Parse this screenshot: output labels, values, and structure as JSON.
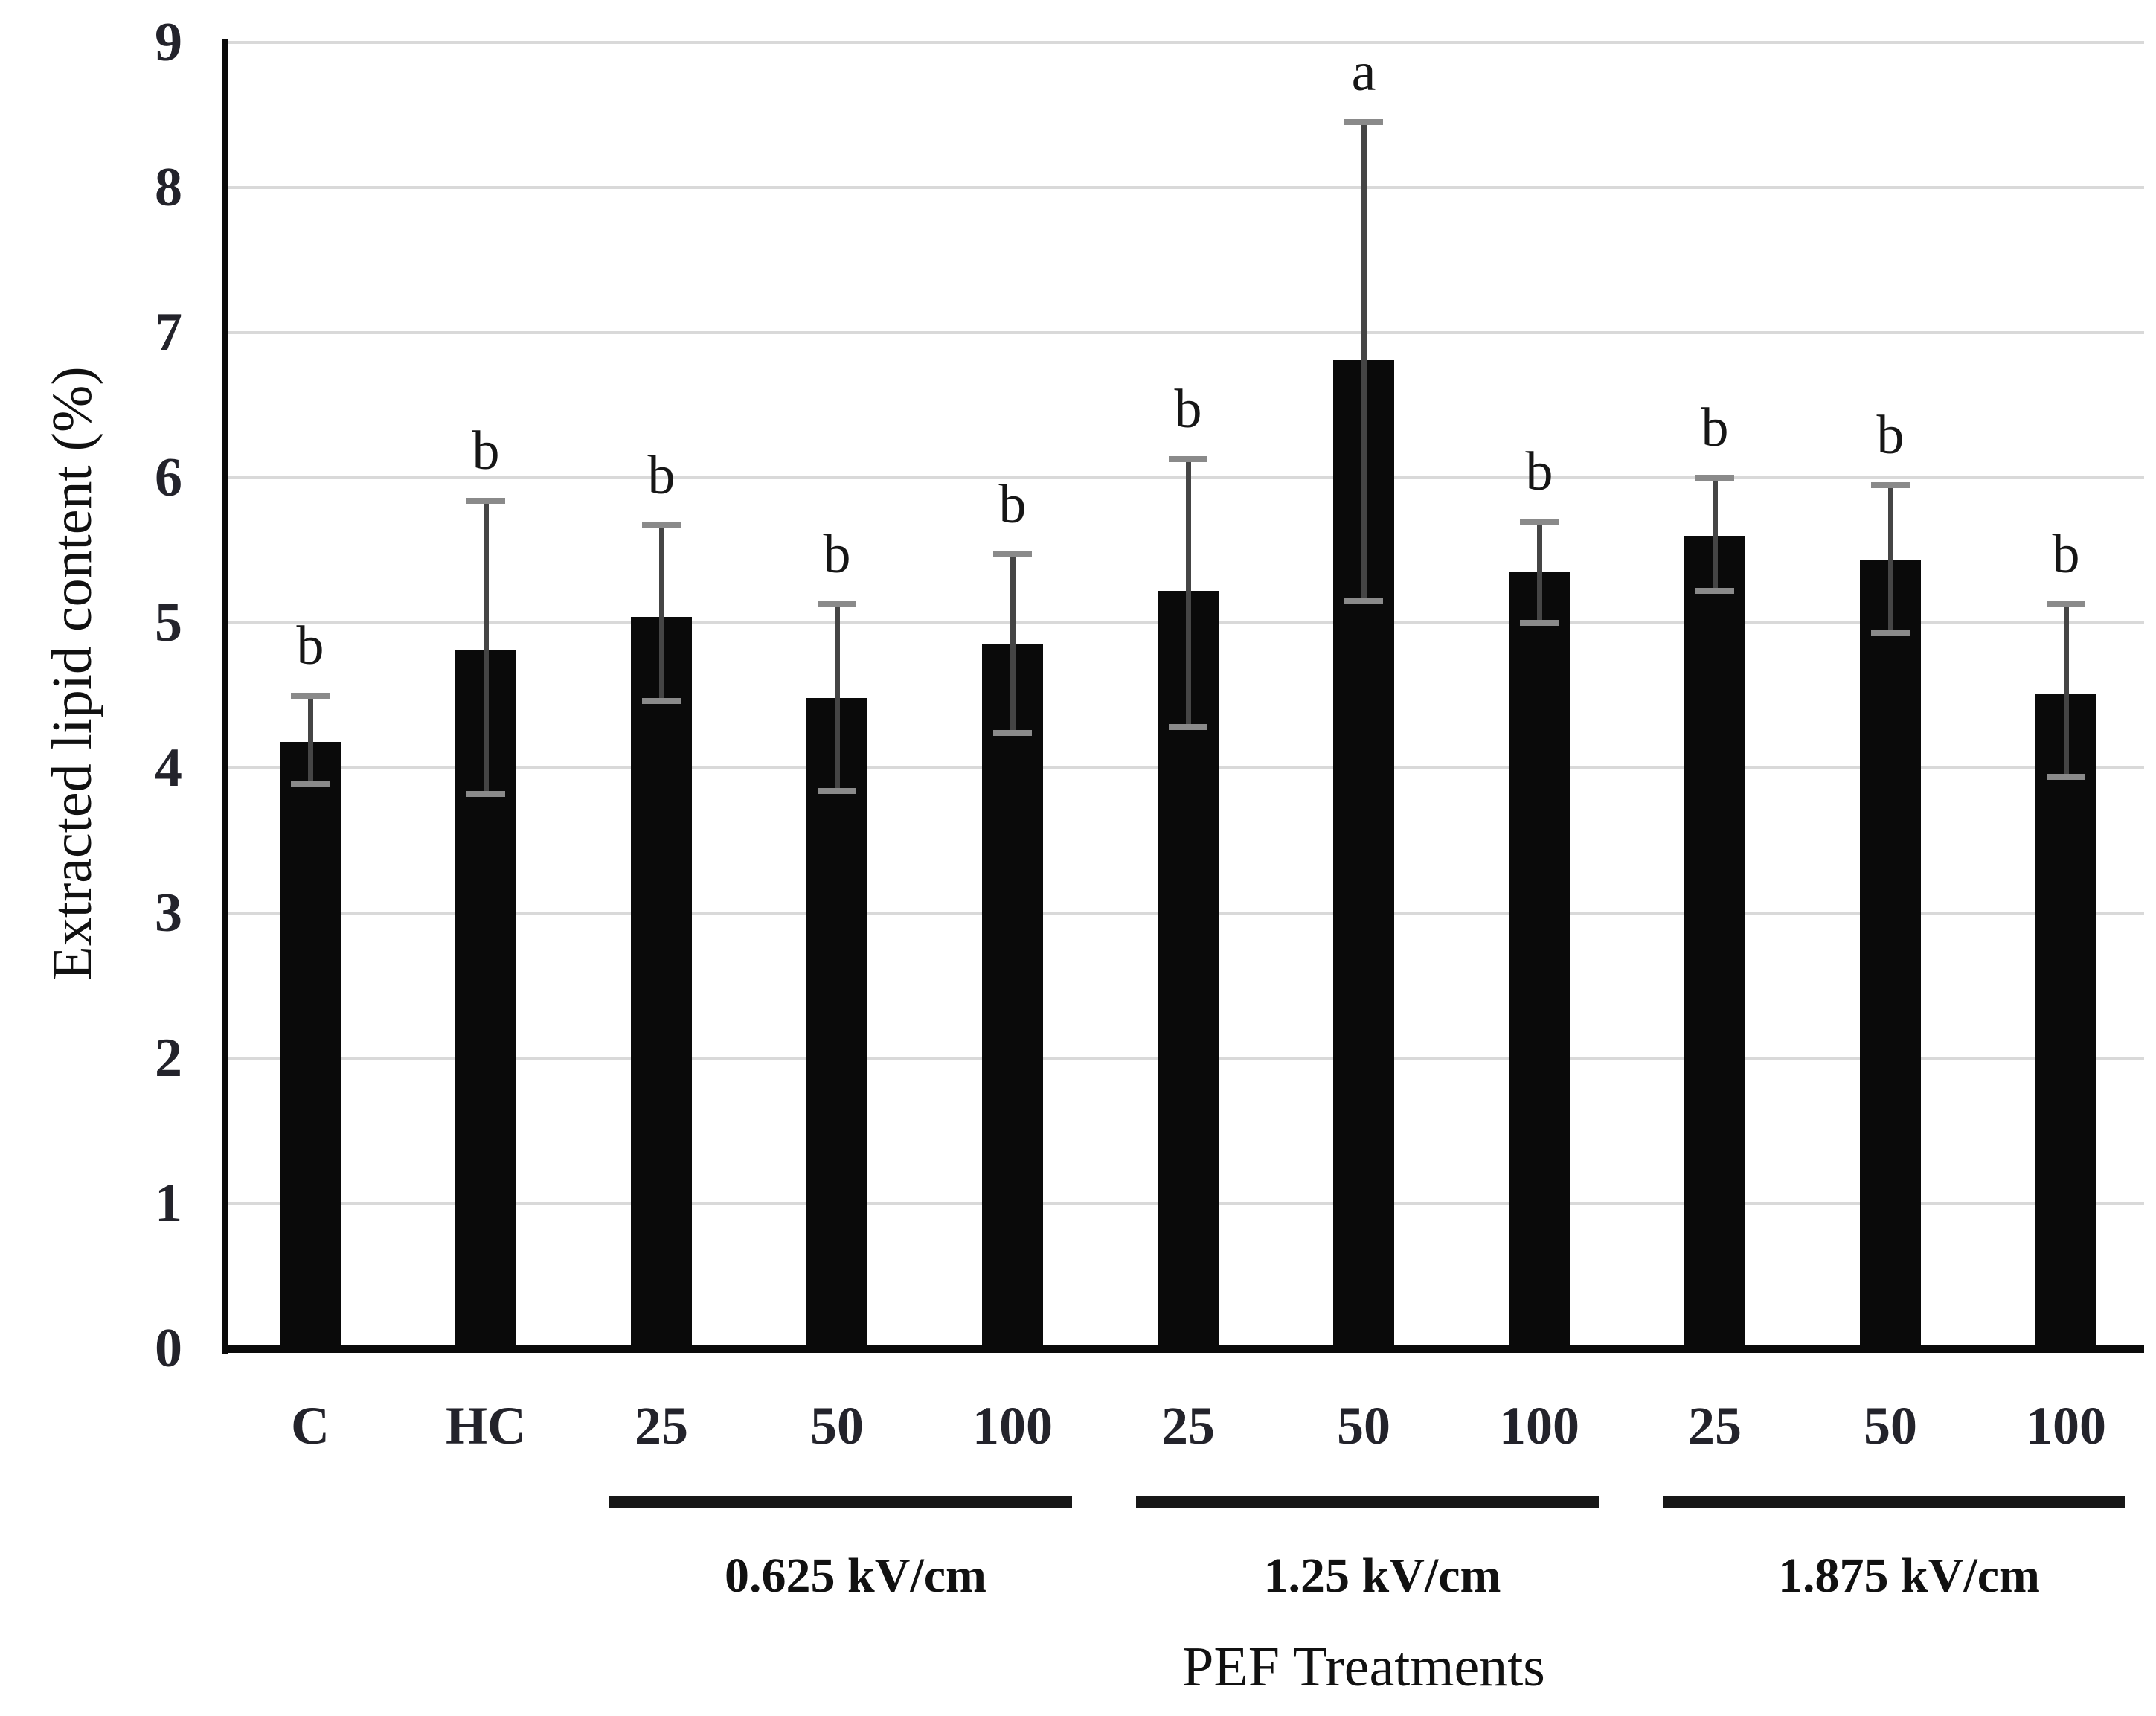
{
  "figure": {
    "background_color": "#ffffff",
    "y_axis_title": "Extracted lipid content (%)",
    "x_axis_title": "PEF Treatments"
  },
  "chart_data": {
    "type": "bar",
    "title": "",
    "xlabel": "PEF Treatments",
    "ylabel": "Extracted lipid content (%)",
    "ylim": [
      0,
      9
    ],
    "yticks": [
      0,
      1,
      2,
      3,
      4,
      5,
      6,
      7,
      8,
      9
    ],
    "grid": true,
    "legend_position": "none",
    "categories": [
      "C",
      "HC",
      "25",
      "50",
      "100",
      "25",
      "50",
      "100",
      "25",
      "50",
      "100"
    ],
    "series": [
      {
        "name": "Extracted lipid content",
        "values": [
          4.18,
          4.81,
          5.04,
          4.48,
          4.85,
          5.22,
          6.81,
          5.35,
          5.6,
          5.43,
          4.51
        ],
        "error_upper": [
          4.5,
          5.84,
          5.67,
          5.13,
          5.47,
          6.13,
          8.45,
          5.7,
          6.0,
          5.95,
          5.13
        ],
        "error_lower": [
          3.89,
          3.82,
          4.46,
          3.84,
          4.24,
          4.28,
          5.15,
          5.0,
          5.22,
          4.93,
          3.94
        ],
        "significance_letters": [
          "b",
          "b",
          "b",
          "b",
          "b",
          "b",
          "a",
          "b",
          "b",
          "b",
          "b"
        ]
      }
    ],
    "groups": [
      {
        "label": "0.625 kV/cm",
        "start_index": 2,
        "end_index": 4
      },
      {
        "label": "1.25 kV/cm",
        "start_index": 5,
        "end_index": 7
      },
      {
        "label": "1.875 kV/cm",
        "start_index": 8,
        "end_index": 10
      }
    ],
    "colors": {
      "bar": "#0a0a0a",
      "error_line": "#454545",
      "error_cap": "#8a8a8a",
      "gridline": "#d9d9d9",
      "axis": "#0a0a0a",
      "text": "#111111"
    }
  }
}
